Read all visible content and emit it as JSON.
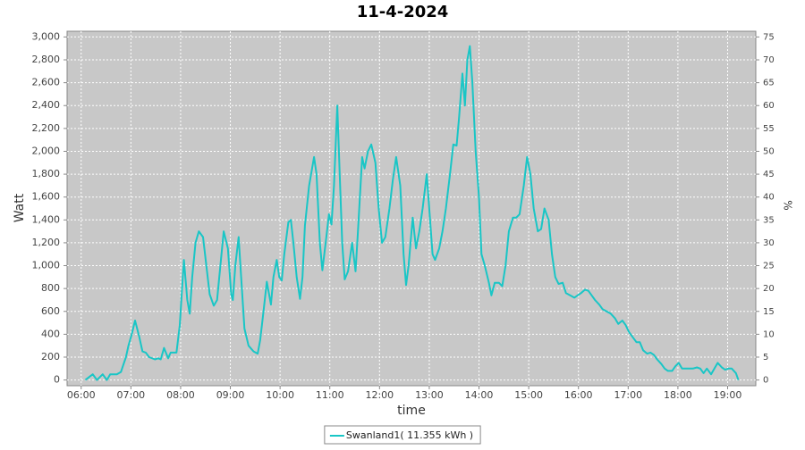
{
  "chart_data": {
    "type": "line",
    "title": "11-4-2024",
    "x_label": "time",
    "y_label": "Watt",
    "y2_label": "%",
    "x": [
      "06:05",
      "06:14",
      "06:19",
      "06:26",
      "06:31",
      "06:35",
      "06:43",
      "06:48",
      "06:54",
      "06:57",
      "07:01",
      "07:05",
      "07:10",
      "07:14",
      "07:18",
      "07:22",
      "07:29",
      "07:33",
      "07:36",
      "07:40",
      "07:45",
      "07:48",
      "07:55",
      "07:59",
      "08:04",
      "08:08",
      "08:11",
      "08:14",
      "08:18",
      "08:22",
      "08:27",
      "08:31",
      "08:35",
      "08:40",
      "08:44",
      "08:48",
      "08:52",
      "08:57",
      "09:01",
      "09:03",
      "09:06",
      "09:10",
      "09:13",
      "09:17",
      "09:22",
      "09:28",
      "09:33",
      "09:36",
      "09:40",
      "09:44",
      "09:48",
      "09:49",
      "09:52",
      "09:56",
      "09:59",
      "10:02",
      "10:05",
      "10:10",
      "10:13",
      "10:16",
      "10:20",
      "10:24",
      "10:27",
      "10:30",
      "10:35",
      "10:41",
      "10:44",
      "10:48",
      "10:51",
      "10:55",
      "10:59",
      "11:02",
      "11:05",
      "11:09",
      "11:12",
      "11:15",
      "11:18",
      "11:22",
      "11:27",
      "11:31",
      "11:34",
      "11:39",
      "11:42",
      "11:46",
      "11:50",
      "11:55",
      "11:59",
      "12:03",
      "12:07",
      "12:12",
      "12:16",
      "12:20",
      "12:25",
      "12:29",
      "12:32",
      "12:35",
      "12:40",
      "12:44",
      "12:48",
      "12:52",
      "12:57",
      "13:00",
      "13:04",
      "13:07",
      "13:12",
      "13:16",
      "13:20",
      "13:25",
      "13:29",
      "13:33",
      "13:36",
      "13:40",
      "13:43",
      "13:46",
      "13:49",
      "13:52",
      "13:56",
      "14:00",
      "14:03",
      "14:07",
      "14:12",
      "14:15",
      "14:19",
      "14:24",
      "14:28",
      "14:32",
      "14:36",
      "14:41",
      "14:45",
      "14:49",
      "14:54",
      "14:58",
      "15:02",
      "15:06",
      "15:11",
      "15:15",
      "15:19",
      "15:24",
      "15:28",
      "15:32",
      "15:36",
      "15:41",
      "15:45",
      "15:50",
      "15:55",
      "15:59",
      "16:03",
      "16:08",
      "16:12",
      "16:16",
      "16:20",
      "16:25",
      "16:29",
      "16:34",
      "16:39",
      "16:44",
      "16:48",
      "16:53",
      "16:57",
      "17:01",
      "17:05",
      "17:10",
      "17:14",
      "17:18",
      "17:23",
      "17:27",
      "17:31",
      "17:35",
      "17:40",
      "17:44",
      "17:48",
      "17:53",
      "17:57",
      "18:01",
      "18:05",
      "18:10",
      "18:14",
      "18:18",
      "18:23",
      "18:27",
      "18:31",
      "18:35",
      "18:40",
      "18:44",
      "18:48",
      "18:53",
      "18:57",
      "19:01",
      "19:05",
      "19:10",
      "19:13"
    ],
    "series": [
      {
        "name": "Swanland1( 11.355 kWh )",
        "color": "#19c6c6",
        "values": [
          0,
          50,
          0,
          50,
          0,
          50,
          50,
          70,
          200,
          300,
          400,
          520,
          380,
          250,
          240,
          200,
          180,
          190,
          180,
          280,
          190,
          240,
          240,
          480,
          1050,
          700,
          580,
          900,
          1200,
          1300,
          1250,
          1000,
          750,
          650,
          700,
          1000,
          1300,
          1150,
          750,
          700,
          1000,
          1250,
          900,
          450,
          300,
          250,
          230,
          350,
          600,
          860,
          700,
          660,
          900,
          1050,
          900,
          870,
          1100,
          1380,
          1400,
          1200,
          900,
          710,
          900,
          1350,
          1700,
          1950,
          1800,
          1200,
          960,
          1200,
          1450,
          1360,
          1700,
          2400,
          1800,
          1200,
          880,
          950,
          1200,
          950,
          1300,
          1950,
          1850,
          2000,
          2060,
          1900,
          1500,
          1200,
          1250,
          1500,
          1750,
          1950,
          1700,
          1100,
          830,
          1000,
          1420,
          1150,
          1300,
          1500,
          1800,
          1500,
          1100,
          1050,
          1150,
          1300,
          1500,
          1800,
          2060,
          2050,
          2300,
          2680,
          2400,
          2800,
          2920,
          2600,
          2000,
          1600,
          1100,
          1000,
          850,
          740,
          850,
          850,
          820,
          1000,
          1300,
          1420,
          1420,
          1450,
          1700,
          1950,
          1800,
          1500,
          1300,
          1320,
          1500,
          1400,
          1100,
          900,
          840,
          850,
          760,
          740,
          720,
          740,
          760,
          790,
          780,
          740,
          700,
          660,
          620,
          600,
          580,
          540,
          490,
          520,
          480,
          420,
          380,
          330,
          330,
          260,
          230,
          240,
          220,
          180,
          140,
          100,
          80,
          80,
          120,
          150,
          100,
          100,
          100,
          100,
          110,
          100,
          60,
          100,
          50,
          100,
          150,
          110,
          90,
          100,
          100,
          60,
          0
        ]
      }
    ],
    "xlim": [
      "05:43",
      "19:34"
    ],
    "xticks": [
      "06:00",
      "07:00",
      "08:00",
      "09:00",
      "10:00",
      "11:00",
      "12:00",
      "13:00",
      "14:00",
      "15:00",
      "16:00",
      "17:00",
      "18:00",
      "19:00"
    ],
    "ylim": [
      -50,
      3050
    ],
    "yticks": [
      0,
      200,
      400,
      600,
      800,
      {
        "value": 1000,
        "label": "1,000"
      },
      {
        "value": 1200,
        "label": "1,200"
      },
      {
        "value": 1400,
        "label": "1,400"
      },
      {
        "value": 1600,
        "label": "1,600"
      },
      {
        "value": 1800,
        "label": "1,800"
      },
      {
        "value": 2000,
        "label": "2,000"
      },
      {
        "value": 2200,
        "label": "2,200"
      },
      {
        "value": 2400,
        "label": "2,400"
      },
      {
        "value": 2600,
        "label": "2,600"
      },
      {
        "value": 2800,
        "label": "2,800"
      },
      {
        "value": 3000,
        "label": "3,000"
      }
    ],
    "y2lim": [
      -1.25,
      76.25
    ],
    "y2ticks": [
      0,
      5,
      10,
      15,
      20,
      25,
      30,
      35,
      40,
      45,
      50,
      55,
      60,
      65,
      70,
      75
    ],
    "grid": true,
    "plot_background": "#c8c8c8",
    "legend": "bottom"
  }
}
